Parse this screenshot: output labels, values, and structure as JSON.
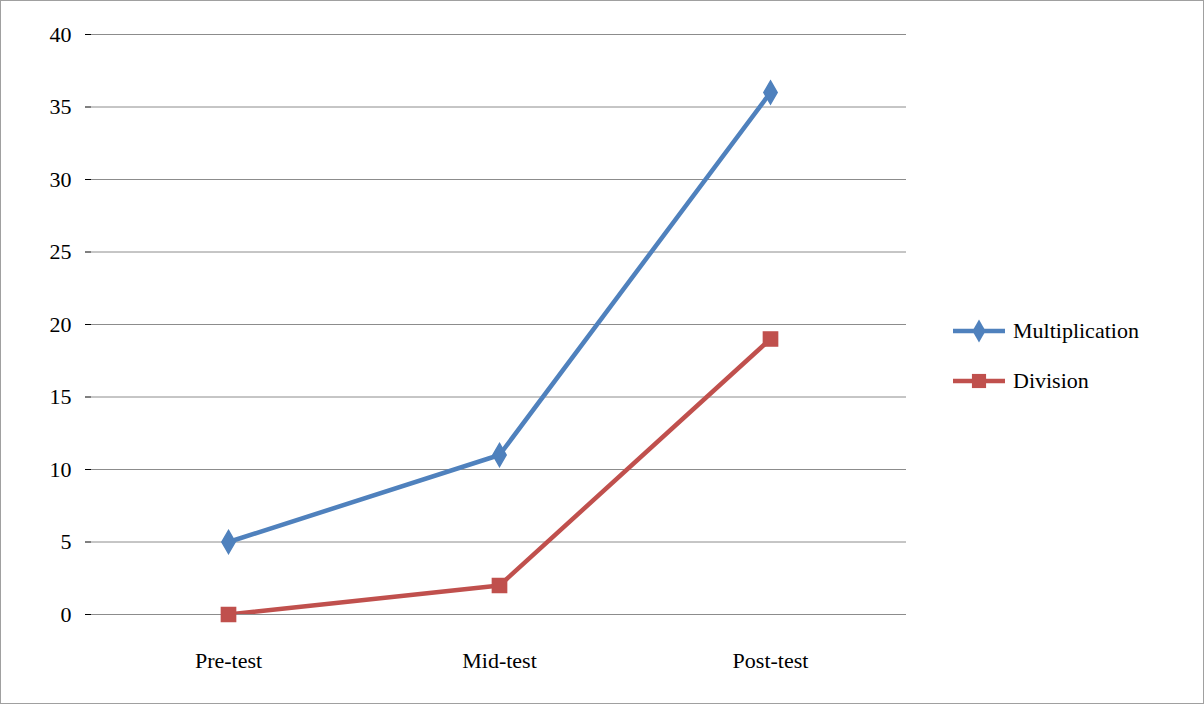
{
  "chart_data": {
    "type": "line",
    "categories": [
      "Pre-test",
      "Mid-test",
      "Post-test"
    ],
    "series": [
      {
        "name": "Multiplication",
        "color": "#4f81bd",
        "marker": "diamond",
        "values": [
          5,
          11,
          36
        ]
      },
      {
        "name": "Division",
        "color": "#c0504d",
        "marker": "square",
        "values": [
          0,
          2,
          19
        ]
      }
    ],
    "ylim": [
      0,
      40
    ],
    "yticks": [
      0,
      5,
      10,
      15,
      20,
      25,
      30,
      35,
      40
    ],
    "grid": true,
    "legend": "right"
  }
}
